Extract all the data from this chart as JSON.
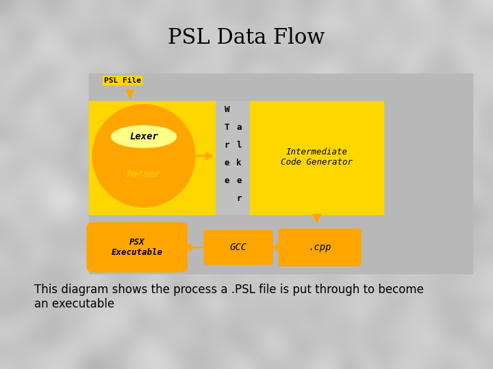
{
  "title": "PSL Data Flow",
  "subtitle": "This diagram shows the process a .PSL file is put through to become\nan executable",
  "title_fontsize": 22,
  "subtitle_fontsize": 12,
  "yellow": "#FFD700",
  "orange": "#FFA500",
  "gray_panel": "#b0b0b0",
  "walker_bg": "#c8c8c8",
  "psl_file_label": "PSL File",
  "lexer_label": "Lexer",
  "parser_label": "Parser",
  "walker_lines": [
    "W",
    "T a",
    "r l",
    "e k",
    "e e",
    "r"
  ],
  "icg_label": "Intermediate\nCode Generator",
  "psx_label": "PSX\nExecutable",
  "gcc_label": "GCC",
  "cpp_label": ".cpp"
}
